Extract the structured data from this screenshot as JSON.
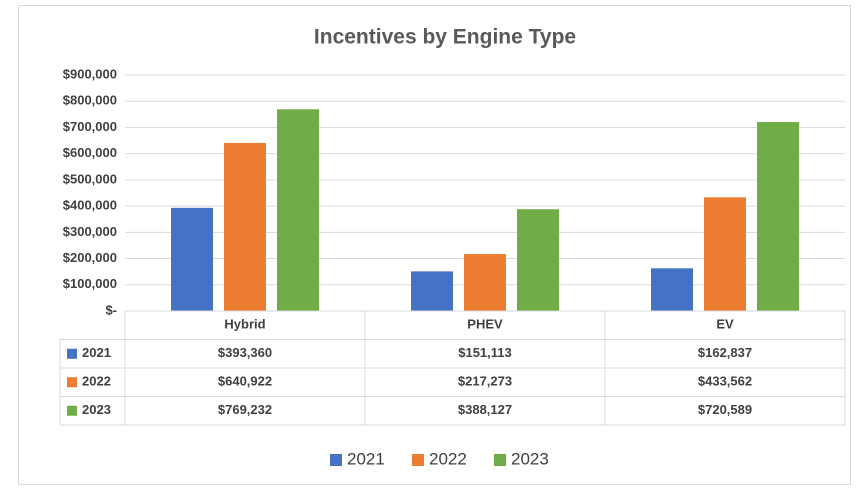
{
  "chart_data": {
    "type": "bar",
    "title": "Incentives by Engine Type",
    "categories": [
      "Hybrid",
      "PHEV",
      "EV"
    ],
    "series": [
      {
        "name": "2021",
        "color": "#4472c4",
        "values": [
          393360,
          151113,
          162837
        ],
        "value_labels": [
          "$393,360",
          "$151,113",
          "$162,837"
        ]
      },
      {
        "name": "2022",
        "color": "#ed7d31",
        "values": [
          640922,
          217273,
          433562
        ],
        "value_labels": [
          "$640,922",
          "$217,273",
          "$433,562"
        ]
      },
      {
        "name": "2023",
        "color": "#70ad47",
        "values": [
          769232,
          388127,
          720589
        ],
        "value_labels": [
          "$769,232",
          "$388,127",
          "$720,589"
        ]
      }
    ],
    "ylim": [
      0,
      900000
    ],
    "yticks": [
      {
        "value": 0,
        "label": "$-"
      },
      {
        "value": 100000,
        "label": "$100,000"
      },
      {
        "value": 200000,
        "label": "$200,000"
      },
      {
        "value": 300000,
        "label": "$300,000"
      },
      {
        "value": 400000,
        "label": "$400,000"
      },
      {
        "value": 500000,
        "label": "$500,000"
      },
      {
        "value": 600000,
        "label": "$600,000"
      },
      {
        "value": 700000,
        "label": "$700,000"
      },
      {
        "value": 800000,
        "label": "$800,000"
      },
      {
        "value": 900000,
        "label": "$900,000"
      }
    ],
    "grid": true,
    "legend": "bottom",
    "data_table": true
  }
}
